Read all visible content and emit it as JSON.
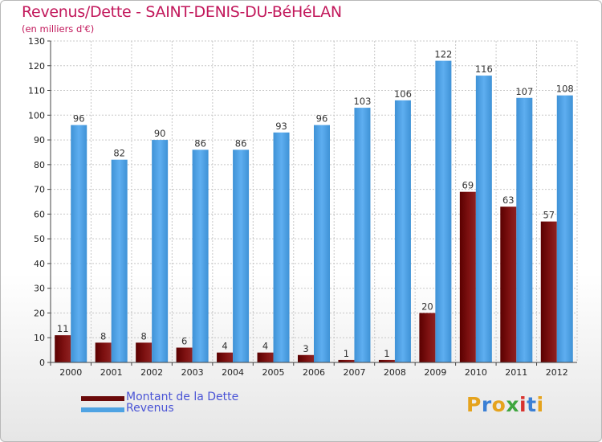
{
  "title": "Revenus/Dette - SAINT-DENIS-DU-BéHéLAN",
  "subtitle": "(en milliers d'€)",
  "legend": [
    {
      "label": "Montant de la Dette",
      "color": "#7a0d0d"
    },
    {
      "label": "Revenus",
      "color": "#4fa3e3"
    }
  ],
  "logo": {
    "text": "Proxiti",
    "colors": [
      "#e5a31d",
      "#3a7fd5",
      "#e5a31d",
      "#3fa63f",
      "#d9322e",
      "#3a7fd5",
      "#e5a31d"
    ]
  },
  "chart_data": {
    "type": "bar",
    "title": "Revenus/Dette - SAINT-DENIS-DU-BéHéLAN",
    "subtitle": "(en milliers d'€)",
    "categories": [
      "2000",
      "2001",
      "2002",
      "2003",
      "2004",
      "2005",
      "2006",
      "2007",
      "2008",
      "2009",
      "2010",
      "2011",
      "2012"
    ],
    "series": [
      {
        "name": "Montant de la Dette",
        "color": "#7a0d0d",
        "values": [
          11,
          8,
          8,
          6,
          4,
          4,
          3,
          1,
          1,
          20,
          69,
          63,
          57
        ]
      },
      {
        "name": "Revenus",
        "color": "#4fa3e3",
        "values": [
          96,
          82,
          90,
          86,
          86,
          93,
          96,
          103,
          106,
          122,
          116,
          107,
          108
        ]
      }
    ],
    "ylim": [
      0,
      130
    ],
    "yticks": [
      0,
      10,
      20,
      30,
      40,
      50,
      60,
      70,
      80,
      90,
      100,
      110,
      120,
      130
    ],
    "grid": true,
    "legend_position": "bottom-left"
  }
}
